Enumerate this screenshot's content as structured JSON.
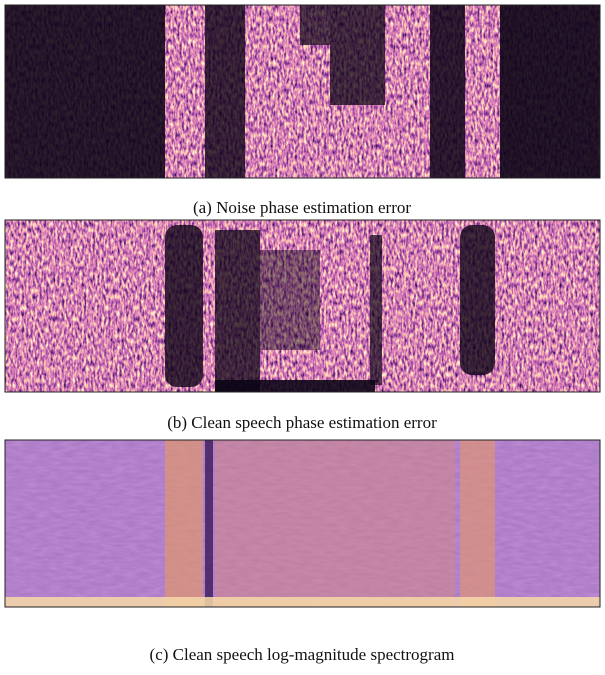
{
  "figure": {
    "captions": [
      "(a) Noise phase estimation error",
      "(b) Clean speech phase estimation error",
      "(c) Clean speech log-magnitude spectrogram"
    ]
  }
}
